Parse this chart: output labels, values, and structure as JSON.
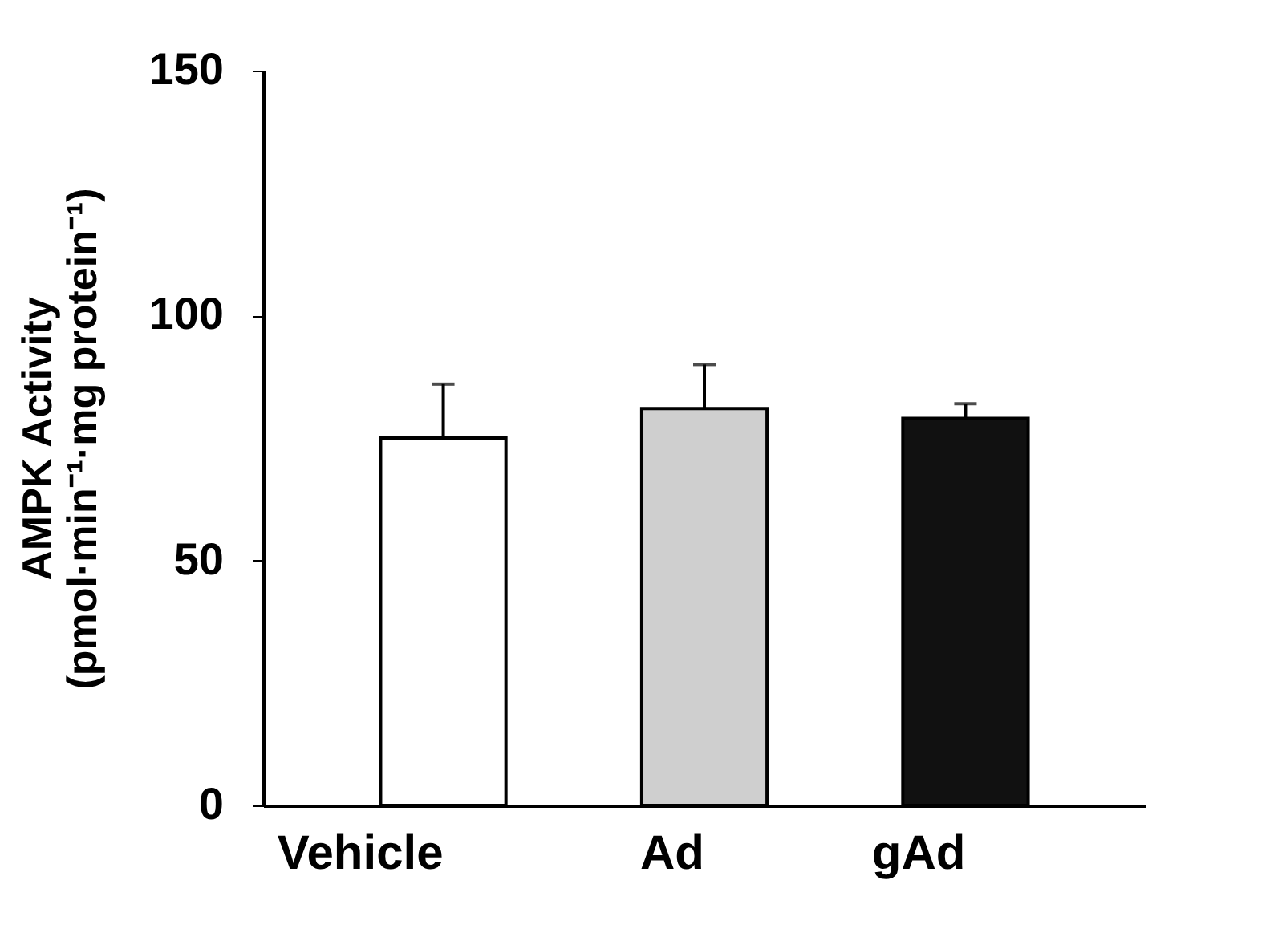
{
  "chart_data": {
    "type": "bar",
    "ylabel": "AMPK Activity\n(pmol·min⁻¹·mg protein⁻¹)",
    "categories": [
      "Vehicle",
      "Ad",
      "gAd"
    ],
    "values": [
      75,
      81,
      79
    ],
    "colors": [
      "#ffffff",
      "#cfcfcf",
      "#111111"
    ],
    "errors": [
      [
        75,
        86
      ],
      [
        81,
        90
      ],
      [
        79,
        82
      ]
    ],
    "ylim": [
      0,
      150
    ],
    "yticks": [
      0,
      50,
      100,
      150
    ],
    "grid": false
  }
}
